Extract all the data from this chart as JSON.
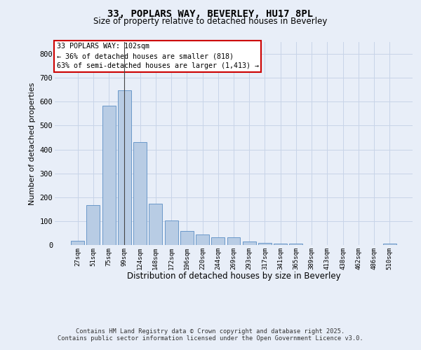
{
  "title_line1": "33, POPLARS WAY, BEVERLEY, HU17 8PL",
  "title_line2": "Size of property relative to detached houses in Beverley",
  "xlabel": "Distribution of detached houses by size in Beverley",
  "ylabel": "Number of detached properties",
  "categories": [
    "27sqm",
    "51sqm",
    "75sqm",
    "99sqm",
    "124sqm",
    "148sqm",
    "172sqm",
    "196sqm",
    "220sqm",
    "244sqm",
    "269sqm",
    "293sqm",
    "317sqm",
    "341sqm",
    "365sqm",
    "389sqm",
    "413sqm",
    "438sqm",
    "462sqm",
    "486sqm",
    "510sqm"
  ],
  "values": [
    18,
    168,
    582,
    648,
    432,
    172,
    103,
    58,
    44,
    32,
    32,
    14,
    10,
    6,
    5,
    0,
    0,
    0,
    0,
    0,
    6
  ],
  "bar_color": "#b8cce4",
  "bar_edge_color": "#5b8ec4",
  "grid_color": "#c8d4e8",
  "background_color": "#e8eef8",
  "annotation_text": "33 POPLARS WAY: 102sqm\n← 36% of detached houses are smaller (818)\n63% of semi-detached houses are larger (1,413) →",
  "annotation_box_color": "#ffffff",
  "annotation_box_edge_color": "#cc0000",
  "ylim": [
    0,
    850
  ],
  "yticks": [
    0,
    100,
    200,
    300,
    400,
    500,
    600,
    700,
    800
  ],
  "footer_line1": "Contains HM Land Registry data © Crown copyright and database right 2025.",
  "footer_line2": "Contains public sector information licensed under the Open Government Licence v3.0."
}
